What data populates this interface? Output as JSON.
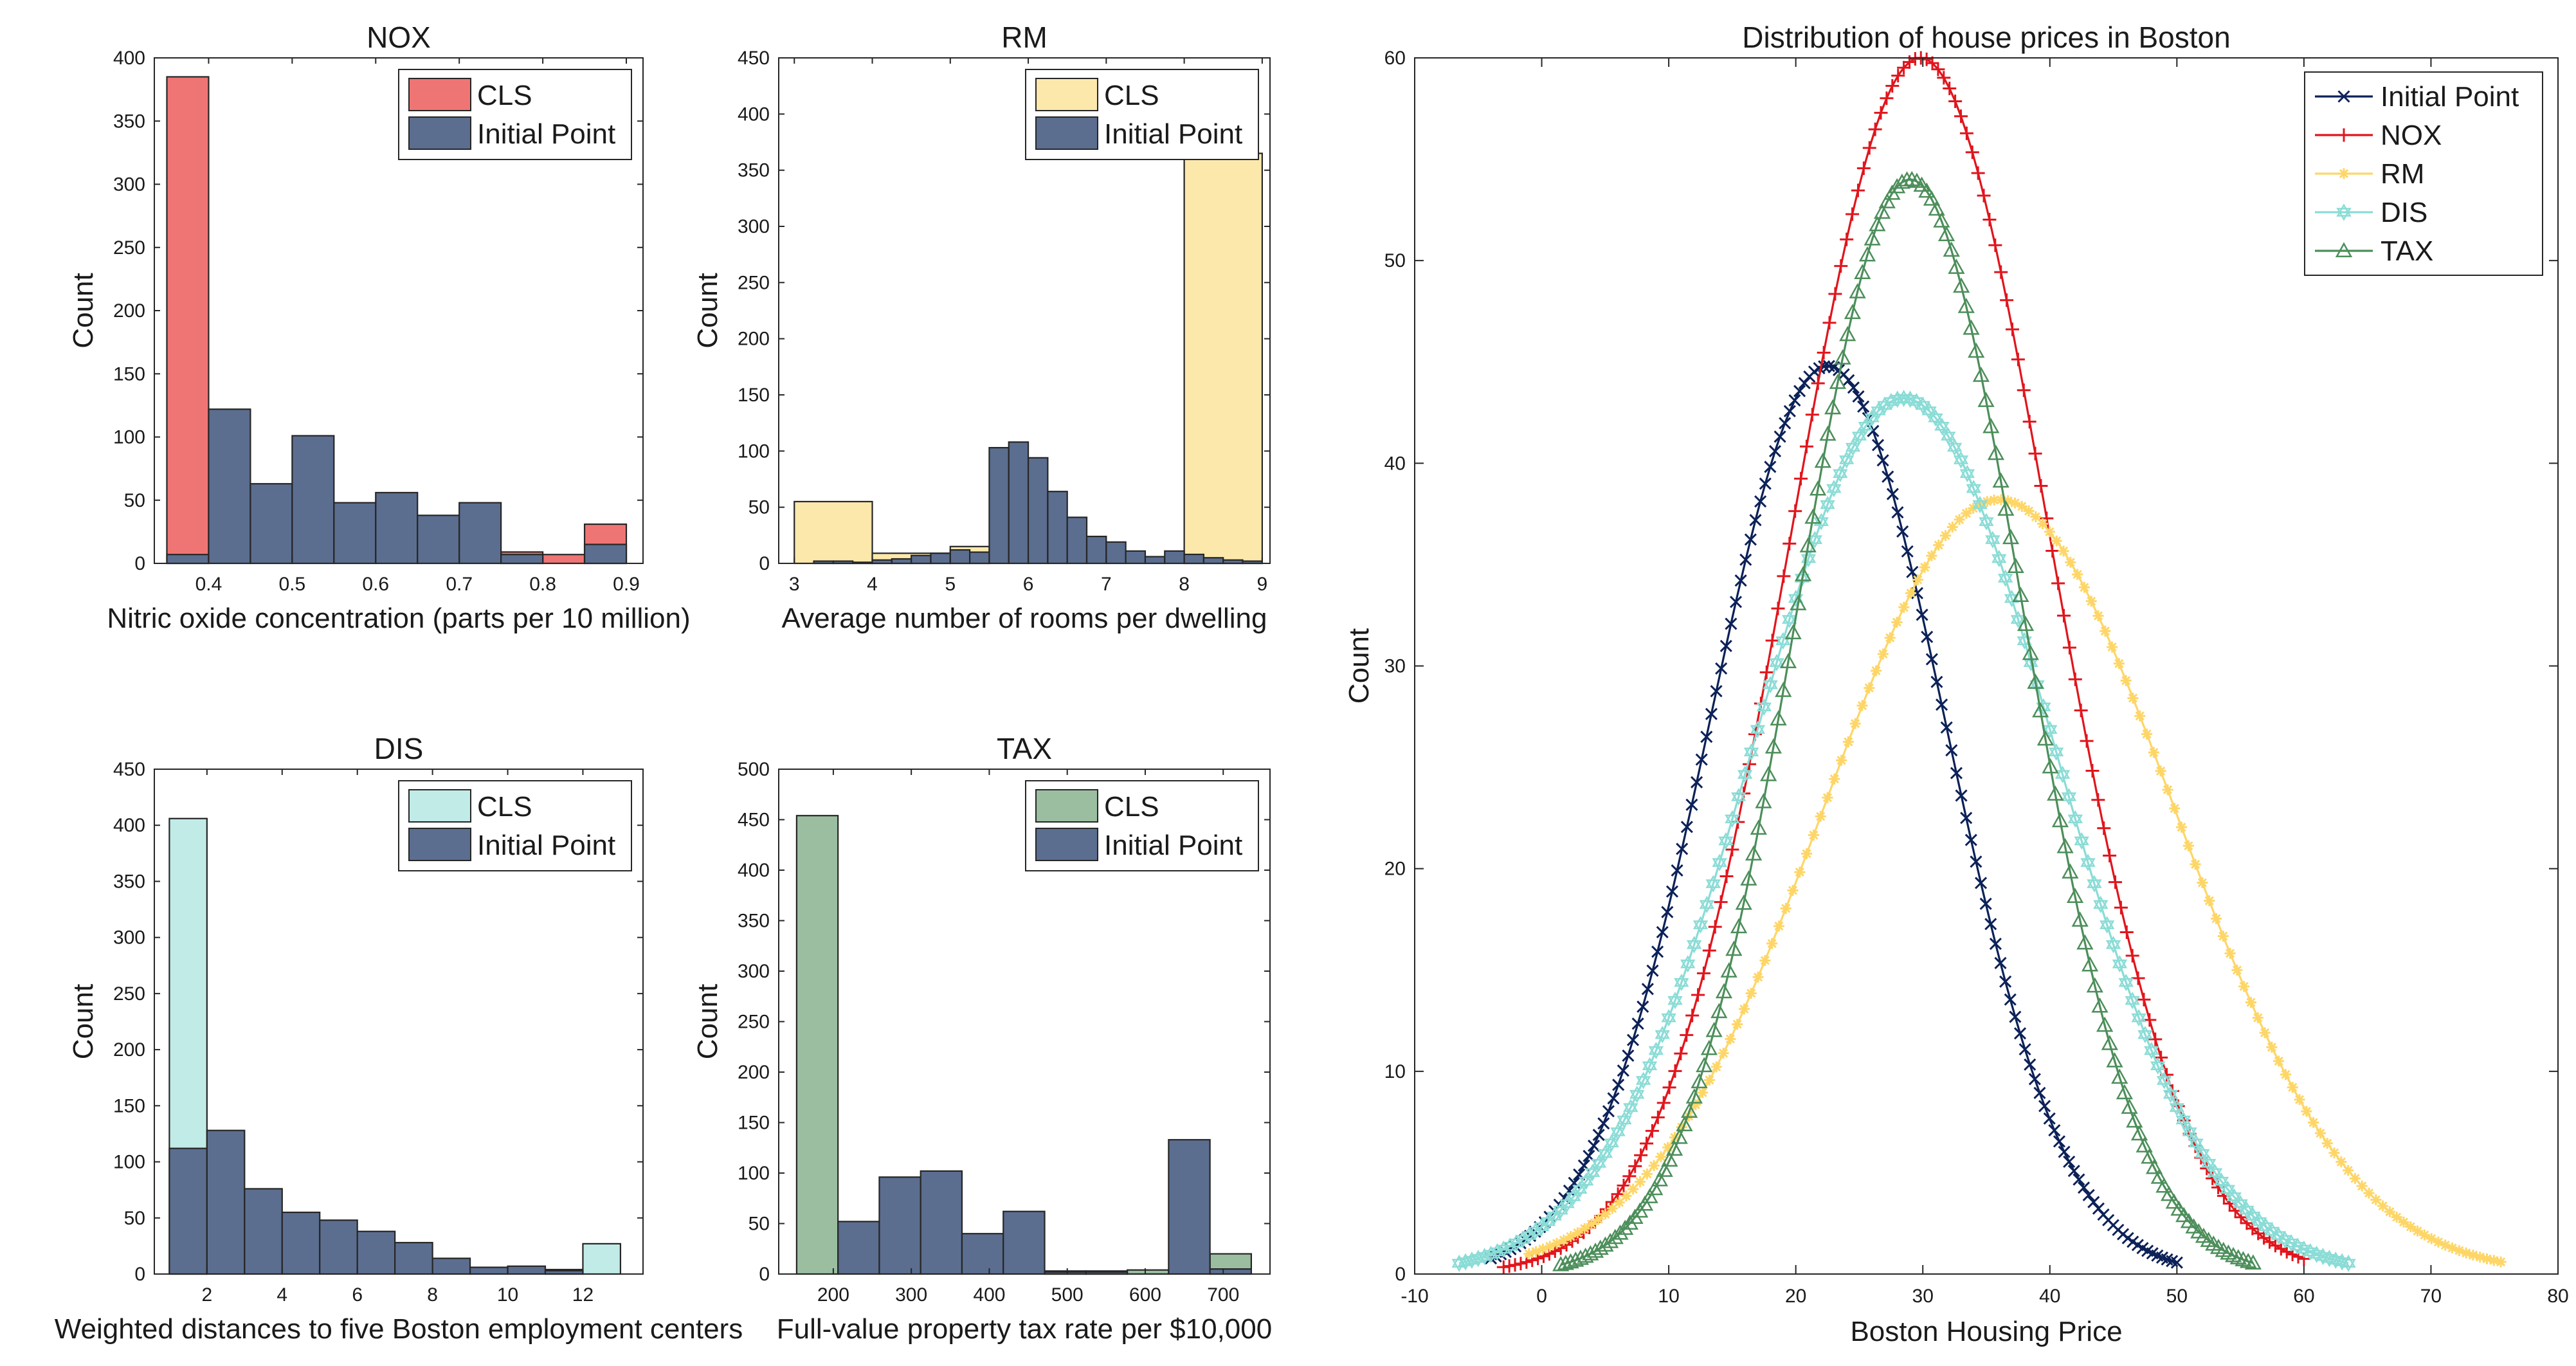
{
  "chart_data": [
    {
      "id": "nox",
      "type": "bar",
      "title": "NOX",
      "xlabel": "Nitric oxide concentration (parts per 10 million)",
      "ylabel": "Count",
      "xlim": [
        0.335,
        0.92
      ],
      "ylim": [
        0,
        400
      ],
      "xticks": [
        0.4,
        0.5,
        0.6,
        0.7,
        0.8,
        0.9
      ],
      "yticks": [
        0,
        50,
        100,
        150,
        200,
        250,
        300,
        350,
        400
      ],
      "bin_edges": [
        0.35,
        0.4,
        0.45,
        0.5,
        0.55,
        0.6,
        0.65,
        0.7,
        0.75,
        0.8,
        0.85,
        0.9
      ],
      "series": [
        {
          "name": "CLS",
          "color": "#ef7574",
          "values": [
            385,
            0,
            0,
            0,
            0,
            0,
            0,
            0,
            9,
            7,
            31
          ]
        },
        {
          "name": "Initial Point",
          "color": "#5b6e90",
          "values": [
            7,
            122,
            63,
            101,
            48,
            56,
            38,
            48,
            7,
            0,
            15
          ]
        }
      ]
    },
    {
      "id": "rm",
      "type": "bar",
      "title": "RM",
      "xlabel": "Average number of rooms per dwelling",
      "ylabel": "Count",
      "xlim": [
        2.8,
        9.1
      ],
      "ylim": [
        0,
        450
      ],
      "xticks": [
        3,
        4,
        5,
        6,
        7,
        8,
        9
      ],
      "yticks": [
        0,
        50,
        100,
        150,
        200,
        250,
        300,
        350,
        400,
        450
      ],
      "series": [
        {
          "name": "CLS",
          "color": "#fde8ac",
          "bars": [
            [
              3,
              4,
              55
            ],
            [
              4,
              5,
              9
            ],
            [
              5,
              5.5,
              15
            ],
            [
              8,
              9,
              365
            ]
          ]
        },
        {
          "name": "Initial Point",
          "color": "#5b6e90",
          "bars": [
            [
              3,
              3.25,
              0
            ],
            [
              3.25,
              3.5,
              2
            ],
            [
              3.5,
              3.75,
              2
            ],
            [
              3.75,
              4,
              1
            ],
            [
              4,
              4.25,
              3
            ],
            [
              4.25,
              4.5,
              4
            ],
            [
              4.5,
              4.75,
              7
            ],
            [
              4.75,
              5,
              9
            ],
            [
              5,
              5.25,
              12
            ],
            [
              5.25,
              5.5,
              10
            ],
            [
              5.5,
              5.75,
              103
            ],
            [
              5.75,
              6,
              108
            ],
            [
              6,
              6.25,
              94
            ],
            [
              6.25,
              6.5,
              64
            ],
            [
              6.5,
              6.75,
              41
            ],
            [
              6.75,
              7,
              24
            ],
            [
              7,
              7.25,
              19
            ],
            [
              7.25,
              7.5,
              11
            ],
            [
              7.5,
              7.75,
              6
            ],
            [
              7.75,
              8,
              11
            ],
            [
              8,
              8.25,
              8
            ],
            [
              8.25,
              8.5,
              5
            ],
            [
              8.5,
              8.75,
              3
            ],
            [
              8.75,
              9,
              2
            ]
          ]
        }
      ]
    },
    {
      "id": "dis",
      "type": "bar",
      "title": "DIS",
      "xlabel": "Weighted distances to five Boston employment centers",
      "ylabel": "Count",
      "xlim": [
        0.6,
        13.6
      ],
      "ylim": [
        0,
        450
      ],
      "xticks": [
        2,
        4,
        6,
        8,
        10,
        12
      ],
      "yticks": [
        0,
        50,
        100,
        150,
        200,
        250,
        300,
        350,
        400,
        450
      ],
      "bin_edges": [
        1,
        2,
        3,
        4,
        5,
        6,
        7,
        8,
        9,
        10,
        11,
        12,
        13
      ],
      "series": [
        {
          "name": "CLS",
          "color": "#c1ebe6",
          "values": [
            406,
            0,
            0,
            0,
            0,
            0,
            0,
            0,
            0,
            0,
            4,
            27
          ]
        },
        {
          "name": "Initial Point",
          "color": "#5b6e90",
          "values": [
            112,
            128,
            76,
            55,
            48,
            38,
            28,
            14,
            6,
            7,
            3,
            0
          ]
        }
      ]
    },
    {
      "id": "tax",
      "type": "bar",
      "title": "TAX",
      "xlabel": "Full-value property tax rate per $10,000",
      "ylabel": "Count",
      "xlim": [
        130,
        760
      ],
      "ylim": [
        0,
        500
      ],
      "xticks": [
        200,
        300,
        400,
        500,
        600,
        700
      ],
      "yticks": [
        0,
        50,
        100,
        150,
        200,
        250,
        300,
        350,
        400,
        450,
        500
      ],
      "bin_edges": [
        153,
        206,
        259,
        312,
        365,
        418,
        471,
        524,
        577,
        630,
        683,
        736
      ],
      "series": [
        {
          "name": "CLS",
          "color": "#9bbea1",
          "values": [
            454,
            0,
            0,
            0,
            0,
            0,
            3,
            3,
            4,
            0,
            20
          ]
        },
        {
          "name": "Initial Point",
          "color": "#5b6e90",
          "values": [
            0,
            52,
            96,
            102,
            40,
            62,
            2,
            2,
            0,
            133,
            5
          ]
        }
      ]
    },
    {
      "id": "price",
      "type": "line",
      "title": "Distribution of house prices in Boston",
      "xlabel": "Boston Housing Price",
      "ylabel": "Count",
      "xlim": [
        -10,
        80
      ],
      "ylim": [
        0,
        60
      ],
      "xticks": [
        -10,
        0,
        10,
        20,
        30,
        40,
        50,
        60,
        70,
        80
      ],
      "yticks": [
        0,
        10,
        20,
        30,
        40,
        50,
        60
      ],
      "series": [
        {
          "name": "Initial Point",
          "color": "#0c2158",
          "marker": "x",
          "peak_x": 22.5,
          "peak_y": 44.8,
          "sigma": 9.3,
          "x_range": [
            -4,
            50
          ]
        },
        {
          "name": "NOX",
          "color": "#e1151c",
          "marker": "+",
          "peak_x": 29.8,
          "peak_y": 60,
          "sigma": 10.2,
          "x_range": [
            -3,
            60
          ]
        },
        {
          "name": "RM",
          "color": "#fed667",
          "marker": "*",
          "peak_x": 36,
          "peak_y": 38.2,
          "sigma": 13.7,
          "x_range": [
            -1,
            75.5
          ]
        },
        {
          "name": "DIS",
          "color": "#8adcd6",
          "marker": "hexagram",
          "peak_x": 28.5,
          "peak_y": 43.2,
          "sigma": 11.8,
          "x_range": [
            -6.5,
            63.5
          ]
        },
        {
          "name": "TAX",
          "color": "#4c8e5a",
          "marker": "triangle",
          "peak_x": 29,
          "peak_y": 54,
          "sigma": 8.9,
          "x_range": [
            1.5,
            56
          ]
        }
      ]
    }
  ]
}
